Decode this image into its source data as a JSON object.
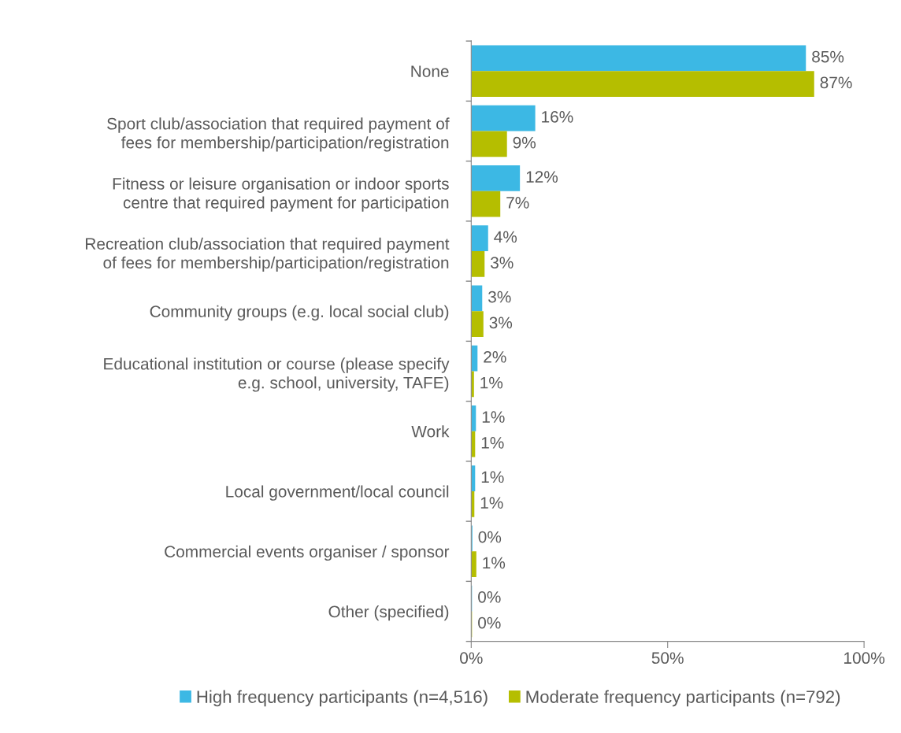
{
  "chart_data": {
    "type": "bar",
    "orientation": "horizontal",
    "categories": [
      "None",
      "Sport club/association that required payment of\nfees for membership/participation/registration",
      "Fitness or leisure organisation or indoor sports\ncentre that required payment for participation",
      "Recreation club/association that required payment\nof fees for membership/participation/registration",
      "Community groups (e.g. local social club)",
      "Educational institution or course (please specify\ne.g. school, university, TAFE)",
      "Work",
      "Local government/local council",
      "Commercial events organiser / sponsor",
      "Other (specified)"
    ],
    "series": [
      {
        "name": "High frequency participants (n=4,516)",
        "color": "#3cb8e4",
        "values": [
          85.2,
          16.3,
          12.4,
          4.3,
          2.8,
          1.6,
          1.2,
          1,
          0.3,
          0.2
        ],
        "value_labels": [
          "85%",
          "16%",
          "12%",
          "4%",
          "3%",
          "2%",
          "1%",
          "1%",
          "0%",
          "0%"
        ]
      },
      {
        "name": "Moderate frequency participants (n=792)",
        "color": "#b5be00",
        "values": [
          87.3,
          9.1,
          7.4,
          3.4,
          3.1,
          0.7,
          1.0,
          0.8,
          1.3,
          0.2
        ],
        "value_labels": [
          "87%",
          "9%",
          "7%",
          "3%",
          "3%",
          "1%",
          "1%",
          "1%",
          "1%",
          "0%"
        ]
      }
    ],
    "xlim": [
      0,
      100
    ],
    "xticks": [
      {
        "value": 0,
        "label": "0%"
      },
      {
        "value": 50,
        "label": "50%"
      },
      {
        "value": 100,
        "label": "100%"
      }
    ],
    "legend": "bottom",
    "grid": false
  }
}
